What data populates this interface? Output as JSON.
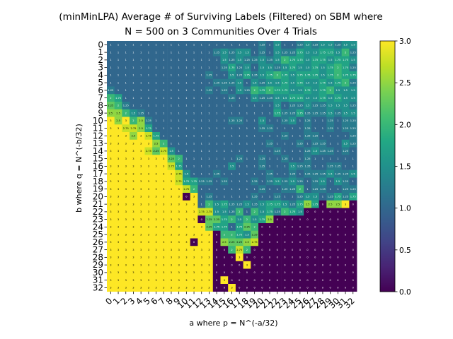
{
  "chart_data": {
    "type": "heatmap",
    "title": "(minMinLPA) Average # of Surviving Labels (Filtered) on SBM where",
    "subtitle": "N = 500 on 3 Communities Over 4 Trials",
    "xlabel": "a where p = N^(-a/32)",
    "ylabel": "b where q = N^(-b/32)",
    "x_ticks": [
      "0",
      "1",
      "2",
      "3",
      "4",
      "5",
      "6",
      "7",
      "8",
      "9",
      "10",
      "11",
      "12",
      "13",
      "14",
      "15",
      "16",
      "17",
      "18",
      "19",
      "20",
      "21",
      "22",
      "23",
      "24",
      "25",
      "26",
      "27",
      "28",
      "29",
      "30",
      "31",
      "32"
    ],
    "y_ticks": [
      "0",
      "1",
      "2",
      "3",
      "4",
      "5",
      "6",
      "7",
      "8",
      "9",
      "10",
      "11",
      "12",
      "13",
      "14",
      "15",
      "16",
      "17",
      "18",
      "19",
      "20",
      "21",
      "22",
      "23",
      "24",
      "25",
      "26",
      "27",
      "28",
      "29",
      "30",
      "31",
      "32"
    ],
    "colorbar": {
      "min": 0.0,
      "max": 3.0,
      "ticks": [
        "0.0",
        "0.5",
        "1.0",
        "1.5",
        "2.0",
        "2.5",
        "3.0"
      ],
      "colormap": "viridis"
    },
    "values": [
      [
        1.0,
        1.0,
        1.0,
        1.0,
        1.0,
        1.0,
        1.0,
        1.0,
        1.0,
        1.0,
        1.0,
        1.0,
        1.0,
        1.0,
        1.0,
        1.0,
        1.0,
        1.0,
        1.0,
        1.0,
        1.25,
        1.0,
        1.5,
        1.0,
        1.0,
        1.25,
        1.5,
        1.25,
        1.5,
        1.5,
        1.25,
        1.5,
        1.5
      ],
      [
        1.0,
        1.0,
        1.0,
        1.0,
        1.0,
        1.0,
        1.0,
        1.0,
        1.0,
        1.0,
        1.0,
        1.0,
        1.0,
        1.0,
        1.25,
        1.5,
        1.25,
        1.5,
        1.5,
        1.0,
        1.25,
        1.0,
        1.5,
        1.25,
        1.25,
        1.75,
        1.5,
        1.5,
        1.75,
        1.75,
        1.5,
        2.0,
        1.25
      ],
      [
        1.0,
        1.0,
        1.0,
        1.0,
        1.0,
        1.0,
        1.0,
        1.0,
        1.0,
        1.0,
        1.0,
        1.0,
        1.0,
        1.0,
        1.0,
        1.5,
        1.25,
        1.5,
        1.25,
        1.25,
        1.5,
        1.25,
        1.5,
        2.0,
        1.75,
        1.75,
        1.5,
        1.75,
        1.75,
        1.5,
        1.75,
        1.75,
        1.5
      ],
      [
        1.0,
        1.0,
        1.0,
        1.0,
        1.0,
        1.0,
        1.0,
        1.0,
        1.0,
        1.0,
        1.0,
        1.0,
        1.0,
        1.0,
        1.0,
        1.25,
        1.75,
        1.25,
        1.5,
        1.0,
        1.5,
        1.5,
        1.25,
        1.5,
        1.75,
        1.5,
        1.5,
        1.75,
        1.5,
        1.75,
        2.0,
        1.75,
        1.25
      ],
      [
        1.0,
        1.0,
        1.0,
        1.0,
        1.0,
        1.0,
        1.0,
        1.0,
        1.0,
        1.0,
        1.0,
        1.0,
        1.0,
        1.25,
        1.0,
        1.0,
        1.5,
        1.25,
        1.75,
        1.25,
        1.5,
        1.75,
        2.0,
        1.75,
        1.5,
        1.75,
        1.75,
        1.75,
        1.5,
        1.75,
        2.0,
        1.75,
        1.75
      ],
      [
        1.0,
        1.0,
        1.0,
        1.0,
        1.0,
        1.0,
        1.0,
        1.0,
        1.0,
        1.0,
        1.0,
        1.0,
        1.0,
        1.0,
        1.25,
        1.25,
        1.25,
        1.5,
        1.0,
        1.5,
        1.25,
        1.5,
        1.5,
        1.75,
        1.5,
        1.75,
        1.5,
        1.5,
        1.75,
        1.5,
        1.75,
        2.0,
        1.25
      ],
      [
        1.25,
        1.0,
        1.0,
        1.0,
        1.0,
        1.0,
        1.0,
        1.0,
        1.0,
        1.0,
        1.0,
        1.0,
        1.0,
        1.25,
        1.0,
        1.25,
        1.0,
        1.5,
        1.25,
        2.0,
        1.75,
        2.0,
        1.75,
        1.75,
        1.5,
        1.5,
        1.75,
        1.5,
        1.75,
        2.0,
        1.5,
        1.5,
        1.5
      ],
      [
        2.0,
        1.75,
        1.0,
        1.0,
        1.0,
        1.0,
        1.0,
        1.0,
        1.0,
        1.0,
        1.0,
        1.0,
        1.0,
        1.0,
        1.0,
        1.0,
        1.25,
        1.0,
        1.0,
        1.5,
        1.25,
        1.25,
        1.5,
        1.5,
        1.75,
        1.75,
        1.5,
        1.5,
        1.75,
        1.5,
        1.75,
        1.5,
        1.5
      ],
      [
        2.25,
        2.0,
        1.25,
        1.0,
        1.0,
        1.0,
        1.0,
        1.0,
        1.0,
        1.0,
        1.0,
        1.0,
        1.0,
        1.0,
        1.0,
        1.0,
        1.0,
        1.0,
        1.0,
        1.0,
        1.0,
        1.0,
        1.5,
        1.0,
        1.25,
        1.25,
        1.5,
        1.25,
        1.25,
        1.5,
        1.5,
        1.5,
        1.25
      ],
      [
        2.5,
        2.5,
        2.0,
        1.5,
        1.25,
        1.0,
        1.0,
        1.0,
        1.0,
        1.0,
        1.0,
        1.0,
        1.0,
        1.0,
        1.0,
        1.0,
        1.0,
        1.0,
        1.0,
        1.0,
        1.0,
        1.0,
        1.75,
        1.25,
        1.25,
        1.75,
        1.25,
        1.25,
        1.25,
        1.5,
        1.25,
        1.5,
        1.5
      ],
      [
        3.0,
        2.5,
        3.0,
        2.0,
        2.5,
        1.25,
        1.0,
        1.0,
        1.0,
        1.0,
        1.0,
        1.0,
        1.0,
        1.0,
        1.0,
        1.0,
        1.25,
        1.25,
        1.0,
        1.0,
        1.5,
        1.0,
        1.0,
        1.25,
        1.5,
        1.0,
        1.25,
        1.0,
        1.0,
        1.25,
        1.0,
        1.25,
        1.25
      ],
      [
        3.0,
        3.0,
        2.75,
        2.75,
        2.5,
        1.75,
        1.0,
        1.0,
        1.0,
        1.0,
        1.0,
        1.0,
        1.0,
        1.0,
        1.0,
        1.0,
        1.0,
        1.0,
        1.0,
        1.0,
        1.25,
        1.25,
        1.0,
        1.0,
        1.0,
        1.0,
        1.25,
        1.0,
        1.0,
        1.25,
        1.0,
        1.25,
        1.25
      ],
      [
        3.0,
        3.0,
        3.0,
        2.5,
        3.0,
        2.75,
        1.75,
        1.0,
        1.0,
        1.0,
        1.0,
        1.0,
        1.0,
        1.0,
        1.0,
        1.0,
        1.0,
        1.0,
        1.0,
        1.0,
        1.0,
        1.0,
        1.0,
        1.25,
        1.0,
        1.0,
        1.25,
        1.25,
        1.0,
        1.0,
        1.0,
        1.0,
        1.25
      ],
      [
        3.0,
        3.0,
        3.0,
        3.0,
        3.0,
        3.0,
        2.5,
        2.0,
        1.0,
        1.0,
        1.0,
        1.0,
        1.0,
        1.0,
        1.0,
        1.0,
        1.0,
        1.0,
        1.0,
        1.0,
        1.0,
        1.25,
        1.0,
        1.0,
        1.0,
        1.25,
        1.0,
        1.25,
        1.25,
        1.0,
        1.0,
        1.5,
        1.25
      ],
      [
        3.0,
        3.0,
        3.0,
        3.0,
        3.0,
        2.75,
        2.25,
        2.75,
        1.5,
        1.0,
        1.0,
        1.0,
        1.0,
        1.0,
        1.0,
        1.0,
        1.0,
        1.0,
        1.0,
        1.0,
        1.0,
        1.0,
        1.25,
        1.0,
        1.0,
        1.0,
        1.25,
        1.5,
        1.25,
        1.25,
        1.0,
        1.25,
        1.0
      ],
      [
        3.0,
        3.0,
        3.0,
        3.0,
        3.0,
        3.0,
        3.0,
        3.0,
        2.25,
        2.0,
        1.0,
        1.0,
        1.0,
        1.0,
        1.0,
        1.0,
        1.0,
        1.25,
        1.0,
        1.0,
        1.25,
        1.0,
        1.0,
        1.25,
        1.0,
        1.0,
        1.25,
        1.0,
        1.0,
        1.0,
        1.0,
        1.0,
        1.0
      ],
      [
        3.0,
        3.0,
        3.0,
        3.0,
        3.0,
        3.0,
        3.0,
        3.0,
        2.75,
        1.75,
        1.0,
        1.0,
        1.0,
        1.0,
        1.0,
        1.0,
        1.5,
        1.0,
        1.0,
        1.0,
        1.25,
        1.0,
        1.0,
        1.0,
        1.5,
        1.25,
        1.25,
        1.0,
        1.0,
        1.25,
        1.25,
        1.0,
        1.0
      ],
      [
        3.0,
        3.0,
        3.0,
        3.0,
        3.0,
        3.0,
        3.0,
        3.0,
        3.0,
        2.75,
        1.5,
        1.0,
        1.0,
        1.0,
        1.25,
        1.0,
        1.0,
        1.0,
        1.0,
        1.0,
        1.0,
        1.25,
        1.0,
        1.0,
        1.25,
        1.0,
        1.25,
        1.25,
        1.25,
        1.5,
        1.25,
        1.25,
        1.5
      ],
      [
        3.0,
        3.0,
        3.0,
        3.0,
        3.0,
        3.0,
        3.0,
        3.0,
        3.0,
        2.75,
        1.75,
        1.75,
        1.25,
        1.25,
        1.0,
        1.25,
        1.0,
        1.0,
        1.0,
        1.25,
        1.0,
        1.25,
        1.5,
        1.25,
        1.5,
        1.25,
        1.0,
        1.25,
        1.5,
        1.0,
        1.5,
        1.25,
        1.0
      ],
      [
        3.0,
        3.0,
        3.0,
        3.0,
        3.0,
        3.0,
        3.0,
        3.0,
        3.0,
        3.0,
        2.75,
        2.0,
        1.0,
        1.0,
        1.0,
        1.0,
        1.0,
        1.0,
        1.0,
        1.0,
        1.25,
        1.0,
        1.0,
        1.25,
        1.25,
        2.0,
        1.0,
        1.25,
        1.25,
        1.0,
        1.0,
        1.25,
        1.25
      ],
      [
        3.0,
        3.0,
        3.0,
        3.0,
        3.0,
        3.0,
        3.0,
        3.0,
        3.0,
        3.0,
        0.0,
        3.0,
        1.0,
        1.25,
        1.0,
        1.0,
        1.0,
        1.0,
        1.0,
        1.25,
        1.0,
        1.0,
        1.25,
        1.0,
        1.0,
        1.25,
        1.5,
        1.5,
        1.0,
        1.25,
        1.75,
        1.25,
        1.75
      ],
      [
        3.0,
        3.0,
        3.0,
        3.0,
        3.0,
        3.0,
        3.0,
        3.0,
        3.0,
        3.0,
        3.0,
        3.0,
        1.0,
        2.0,
        1.5,
        1.75,
        1.25,
        1.25,
        1.5,
        1.25,
        1.5,
        1.75,
        1.75,
        1.5,
        1.25,
        1.75,
        2.5,
        1.75,
        0.0,
        2.5,
        2.5,
        3.0,
        0.0
      ],
      [
        3.0,
        3.0,
        3.0,
        3.0,
        3.0,
        3.0,
        3.0,
        3.0,
        3.0,
        3.0,
        3.0,
        3.0,
        2.75,
        2.75,
        1.5,
        1.5,
        1.25,
        2.0,
        1.0,
        2.0,
        1.5,
        1.75,
        1.25,
        2.0,
        1.75,
        1.5,
        0.0,
        0.0,
        0.0,
        0.0,
        0.0,
        0.0,
        0.0
      ],
      [
        3.0,
        3.0,
        3.0,
        3.0,
        3.0,
        3.0,
        3.0,
        3.0,
        3.0,
        3.0,
        3.0,
        3.0,
        0.0,
        2.25,
        2.25,
        1.75,
        2.0,
        1.5,
        2.0,
        1.5,
        1.75,
        2.5,
        0.0,
        0.0,
        0.0,
        0.0,
        0.0,
        0.0,
        0.0,
        0.0,
        0.0,
        0.0,
        0.0
      ],
      [
        3.0,
        3.0,
        3.0,
        3.0,
        3.0,
        3.0,
        3.0,
        3.0,
        3.0,
        3.0,
        3.0,
        3.0,
        3.0,
        2.25,
        1.75,
        1.75,
        1.0,
        1.75,
        2.25,
        2.0,
        0.0,
        0.0,
        0.0,
        0.0,
        0.0,
        0.0,
        0.0,
        0.0,
        0.0,
        0.0,
        0.0,
        0.0,
        0.0
      ],
      [
        3.0,
        3.0,
        3.0,
        3.0,
        3.0,
        3.0,
        3.0,
        3.0,
        3.0,
        3.0,
        3.0,
        3.0,
        3.0,
        3.0,
        0.0,
        2.0,
        2.0,
        1.75,
        1.5,
        2.25,
        0.0,
        0.0,
        0.0,
        0.0,
        0.0,
        0.0,
        0.0,
        0.0,
        0.0,
        0.0,
        0.0,
        0.0,
        0.0
      ],
      [
        3.0,
        3.0,
        3.0,
        3.0,
        3.0,
        3.0,
        3.0,
        3.0,
        3.0,
        3.0,
        3.0,
        0.0,
        3.0,
        3.0,
        0.0,
        2.5,
        2.25,
        2.25,
        2.5,
        2.75,
        0.0,
        0.0,
        0.0,
        0.0,
        0.0,
        0.0,
        0.0,
        0.0,
        0.0,
        0.0,
        0.0,
        0.0,
        0.0
      ],
      [
        3.0,
        3.0,
        3.0,
        3.0,
        3.0,
        3.0,
        3.0,
        3.0,
        3.0,
        3.0,
        3.0,
        3.0,
        3.0,
        3.0,
        0.0,
        0.0,
        2.0,
        2.75,
        2.0,
        0.0,
        0.0,
        0.0,
        0.0,
        0.0,
        0.0,
        0.0,
        0.0,
        0.0,
        0.0,
        0.0,
        0.0,
        0.0,
        0.0
      ],
      [
        3.0,
        3.0,
        3.0,
        3.0,
        3.0,
        3.0,
        3.0,
        3.0,
        3.0,
        3.0,
        3.0,
        3.0,
        3.0,
        3.0,
        0.0,
        0.0,
        0.0,
        3.0,
        0.0,
        0.0,
        0.0,
        0.0,
        0.0,
        0.0,
        0.0,
        0.0,
        0.0,
        0.0,
        0.0,
        0.0,
        0.0,
        0.0,
        0.0
      ],
      [
        3.0,
        3.0,
        3.0,
        3.0,
        3.0,
        3.0,
        3.0,
        3.0,
        3.0,
        3.0,
        3.0,
        3.0,
        3.0,
        3.0,
        0.0,
        0.0,
        0.0,
        0.0,
        3.0,
        0.0,
        0.0,
        0.0,
        0.0,
        0.0,
        0.0,
        0.0,
        0.0,
        0.0,
        0.0,
        0.0,
        0.0,
        0.0,
        0.0
      ],
      [
        3.0,
        3.0,
        3.0,
        3.0,
        3.0,
        3.0,
        3.0,
        3.0,
        3.0,
        3.0,
        3.0,
        3.0,
        3.0,
        3.0,
        0.0,
        0.0,
        0.0,
        0.0,
        0.0,
        0.0,
        0.0,
        0.0,
        0.0,
        0.0,
        0.0,
        0.0,
        0.0,
        0.0,
        0.0,
        0.0,
        0.0,
        0.0,
        0.0
      ],
      [
        3.0,
        3.0,
        3.0,
        3.0,
        3.0,
        3.0,
        3.0,
        3.0,
        3.0,
        3.0,
        3.0,
        3.0,
        3.0,
        3.0,
        0.0,
        3.0,
        0.0,
        0.0,
        0.0,
        0.0,
        0.0,
        0.0,
        0.0,
        0.0,
        0.0,
        0.0,
        0.0,
        0.0,
        0.0,
        0.0,
        0.0,
        0.0,
        0.0
      ],
      [
        3.0,
        3.0,
        3.0,
        3.0,
        3.0,
        3.0,
        3.0,
        3.0,
        3.0,
        3.0,
        3.0,
        3.0,
        3.0,
        3.0,
        0.0,
        0.0,
        3.0,
        0.0,
        0.0,
        0.0,
        0.0,
        0.0,
        0.0,
        0.0,
        0.0,
        0.0,
        0.0,
        0.0,
        0.0,
        0.0,
        0.0,
        0.0,
        0.0
      ]
    ]
  }
}
